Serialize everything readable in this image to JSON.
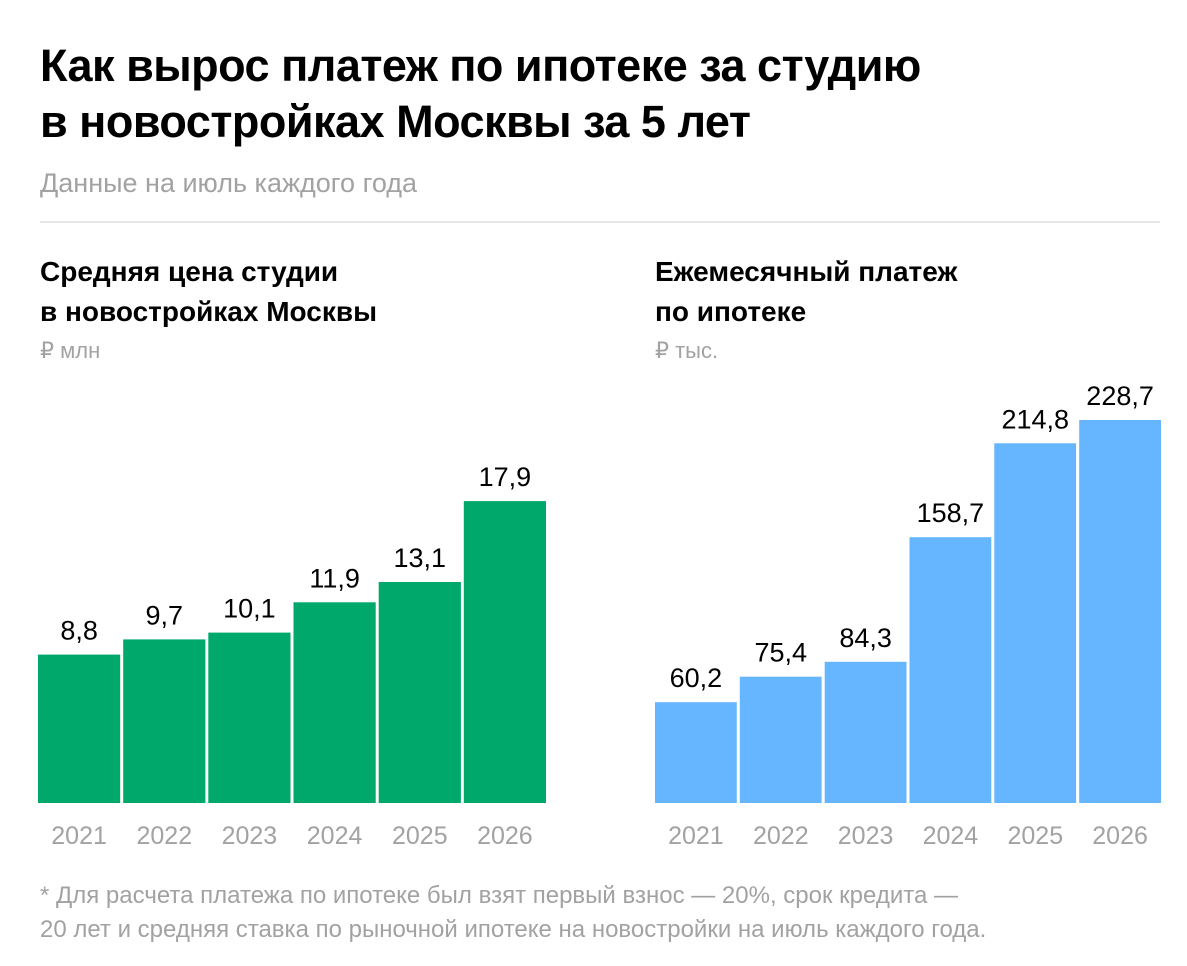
{
  "header": {
    "title_line1": "Как вырос платеж по ипотеке за студию",
    "title_line2": "в новостройках Москвы за 5 лет",
    "subtitle": "Данные на июль каждого года"
  },
  "colors": {
    "left_bars": "#00a86b",
    "right_bars": "#66b5ff",
    "muted_text": "#a2a2a2"
  },
  "footnote": {
    "line1": "* Для расчета платежа по ипотеке был взят первый взнос — 20%, срок кредита —",
    "line2": "20 лет и средняя ставка по рыночной ипотеке на новостройки на июль каждого года."
  },
  "chart_data": [
    {
      "type": "bar",
      "title_line1": "Средняя цена студии",
      "title_line2": "в новостройках Москвы",
      "unit": "₽ млн",
      "categories": [
        "2021",
        "2022",
        "2023",
        "2024",
        "2025",
        "2026"
      ],
      "values": [
        8.8,
        9.7,
        10.1,
        11.9,
        13.1,
        17.9
      ],
      "value_labels": [
        "8,8",
        "9,7",
        "10,1",
        "11,9",
        "13,1",
        "17,9"
      ],
      "ylim": [
        0,
        24.9
      ],
      "grid": false,
      "color": "#00a86b"
    },
    {
      "type": "bar",
      "title_line1": "Ежемесячный платеж",
      "title_line2": "по ипотеке",
      "unit": "₽ тыс.",
      "categories": [
        "2021",
        "2022",
        "2023",
        "2024",
        "2025",
        "2026"
      ],
      "values": [
        60.2,
        75.4,
        84.3,
        158.7,
        214.8,
        228.7
      ],
      "value_labels": [
        "60,2",
        "75,4",
        "84,3",
        "158,7",
        "214,8",
        "228,7"
      ],
      "ylim": [
        0,
        250.8
      ],
      "grid": false,
      "color": "#66b5ff"
    }
  ]
}
